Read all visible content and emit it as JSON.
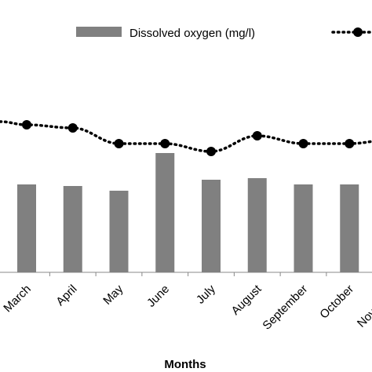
{
  "chart_data": {
    "type": "bar",
    "categories": [
      "March",
      "April",
      "May",
      "June",
      "July",
      "August",
      "September",
      "October",
      "November"
    ],
    "xlabel": "Months",
    "series": [
      {
        "name": "Dissolved oxygen (mg/l)",
        "type": "bar",
        "color": "#808080",
        "values": [
          5.6,
          5.5,
          5.2,
          7.6,
          5.9,
          6.0,
          5.6,
          5.6,
          null
        ]
      },
      {
        "name": "",
        "type": "line",
        "style": "dotted-with-circle-markers",
        "color": "#000000",
        "values": [
          9.4,
          9.2,
          8.2,
          8.2,
          7.7,
          8.7,
          8.2,
          8.2,
          8.5
        ]
      }
    ],
    "ylim": [
      0,
      11.5
    ],
    "grid": false,
    "legend_position": "top"
  }
}
